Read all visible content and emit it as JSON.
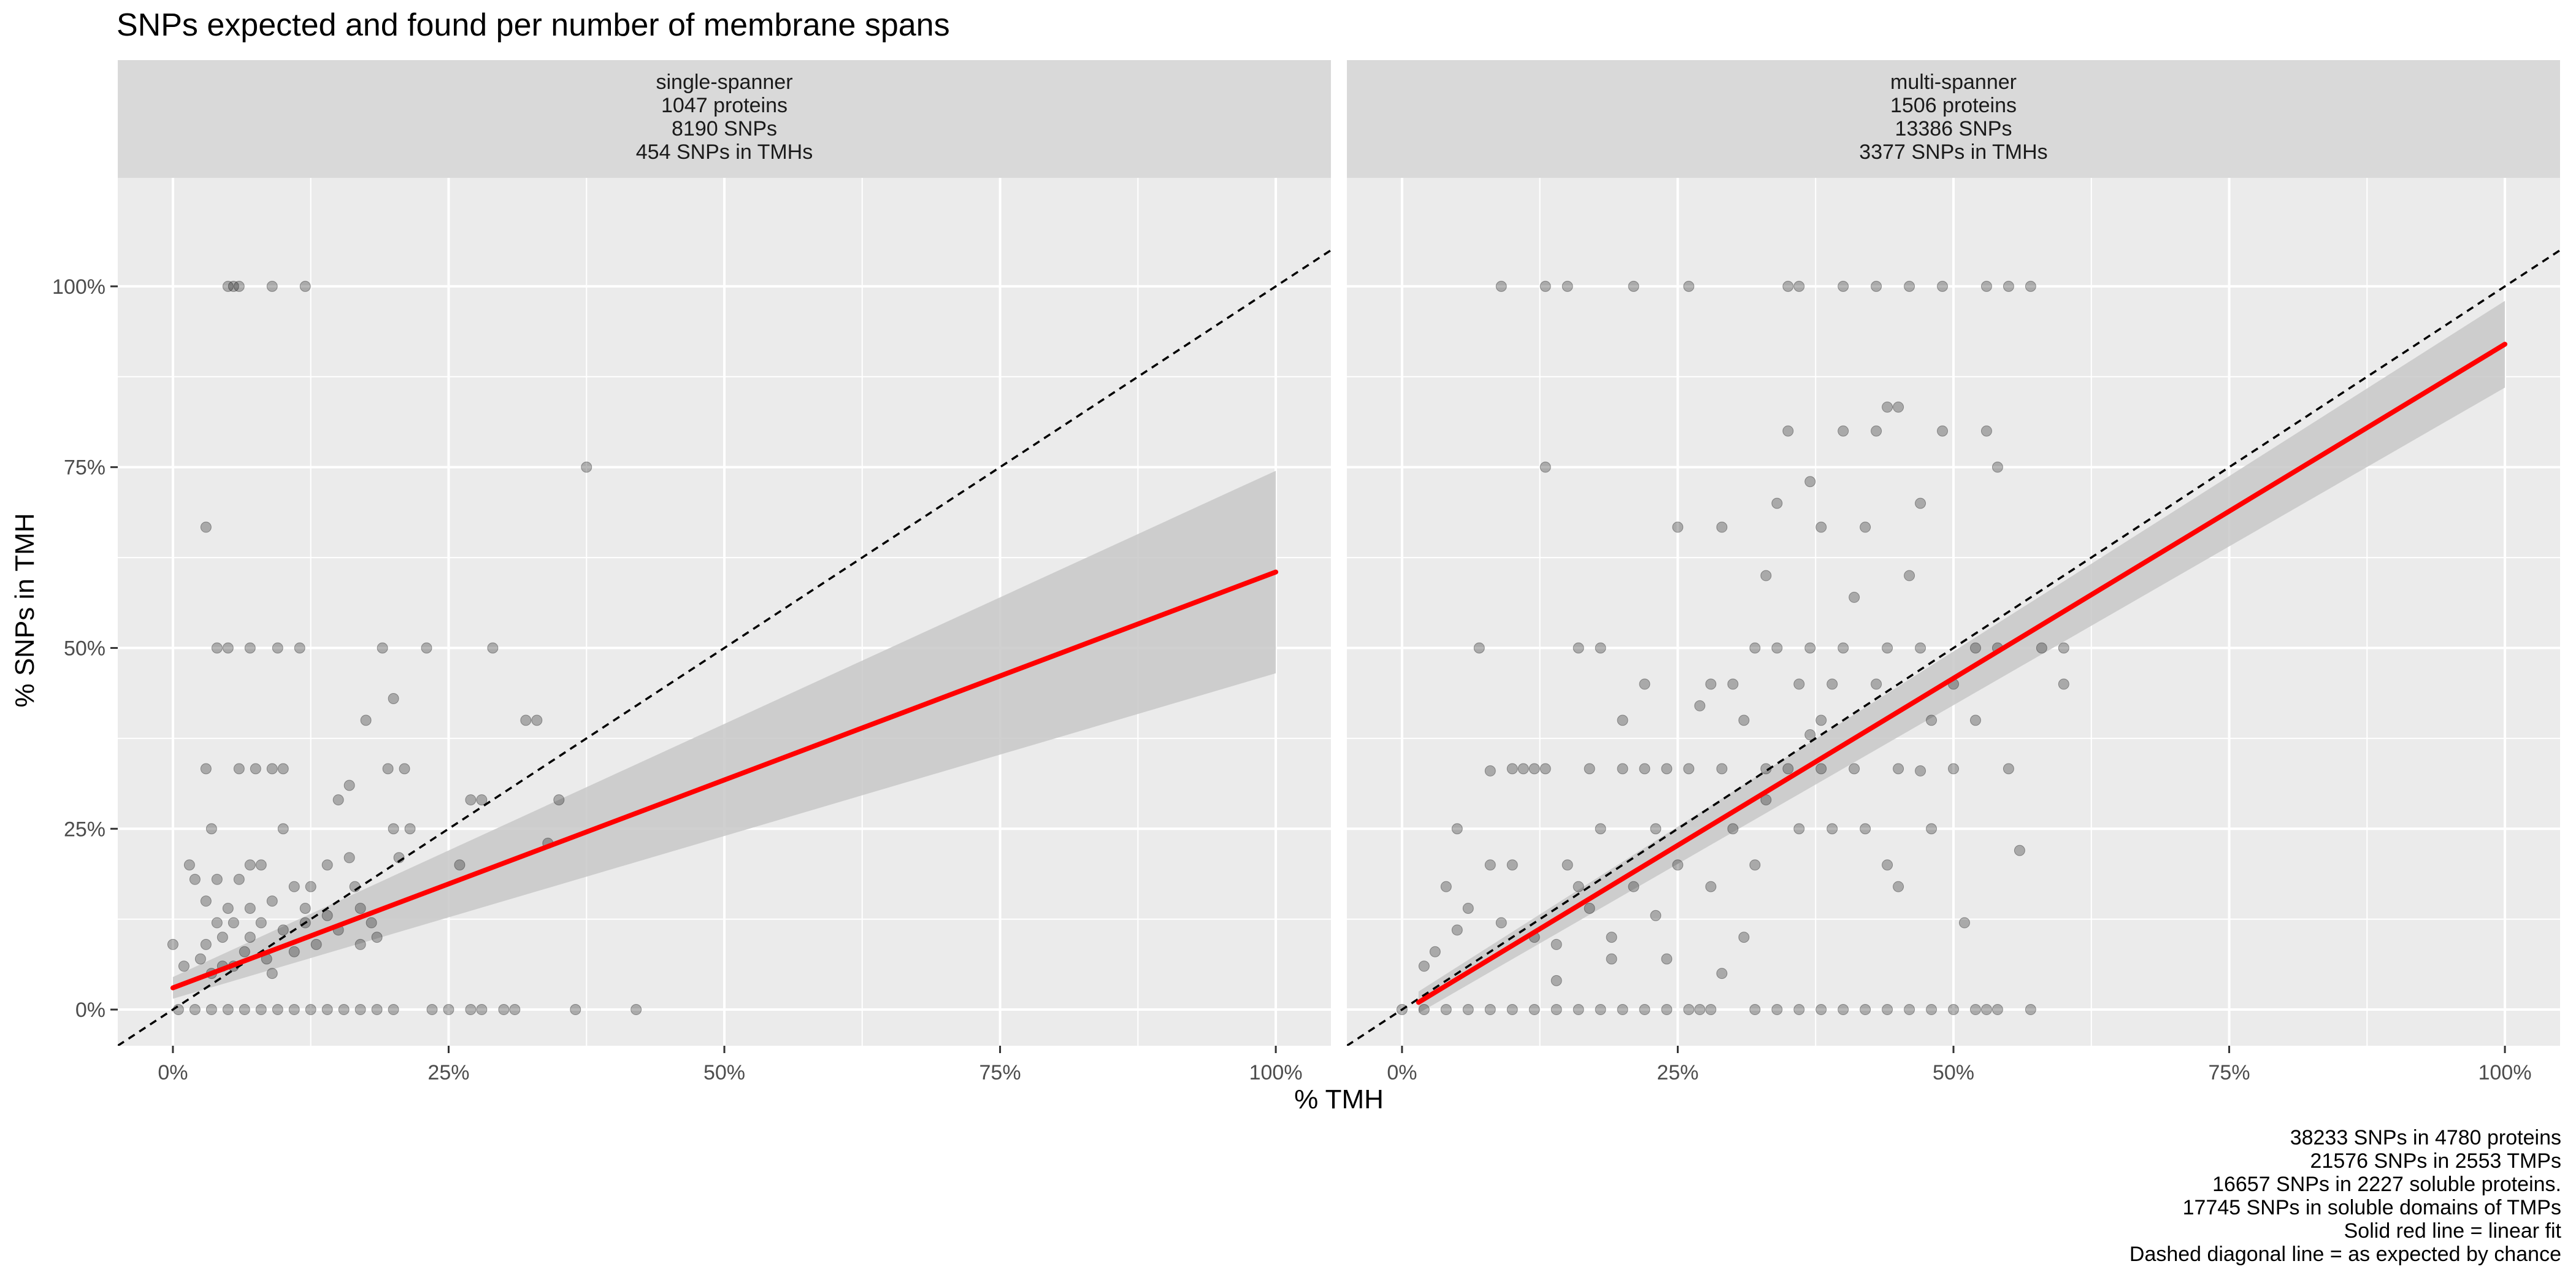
{
  "title": "SNPs expected and found per number of membrane spans",
  "xlabel": "% TMH",
  "ylabel": "% SNPs in TMH",
  "caption": [
    "38233 SNPs in 4780 proteins",
    "21576 SNPs in 2553 TMPs",
    "16657 SNPs in 2227 soluble proteins.",
    "17745 SNPs in soluble domains of TMPs",
    "Solid red line = linear fit",
    "Dashed diagonal line = as expected by chance"
  ],
  "colors": {
    "panel_bg": "#ebebeb",
    "strip_bg": "#d9d9d9",
    "grid": "#ffffff",
    "points": "#000000",
    "fit": "#ff0000",
    "ribbon": "#c8c8c8",
    "diagonal": "#000000"
  },
  "chart_data": {
    "type": "scatter",
    "xlim": [
      -0.05,
      1.05
    ],
    "ylim": [
      -0.05,
      1.15
    ],
    "x_ticks": [
      0,
      0.25,
      0.5,
      0.75,
      1.0
    ],
    "x_tick_labels": [
      "0%",
      "25%",
      "50%",
      "75%",
      "100%"
    ],
    "y_ticks": [
      0,
      0.25,
      0.5,
      0.75,
      1.0
    ],
    "y_tick_labels": [
      "0%",
      "25%",
      "50%",
      "75%",
      "100%"
    ],
    "grid": true,
    "panels": [
      {
        "strip": [
          "single-spanner",
          "1047 proteins",
          "8190 SNPs",
          "454 SNPs in TMHs"
        ],
        "fit": {
          "x": [
            0.0,
            1.0
          ],
          "y": [
            0.03,
            0.605
          ]
        },
        "ribbon": {
          "x": [
            0.0,
            1.0
          ],
          "lower": [
            0.015,
            0.465
          ],
          "upper": [
            0.045,
            0.745
          ]
        },
        "points": [
          [
            0.0,
            0.09
          ],
          [
            0.01,
            0.06
          ],
          [
            0.015,
            0.2
          ],
          [
            0.02,
            0.18
          ],
          [
            0.025,
            0.07
          ],
          [
            0.03,
            0.09
          ],
          [
            0.03,
            0.15
          ],
          [
            0.03,
            0.333
          ],
          [
            0.03,
            0.667
          ],
          [
            0.035,
            0.25
          ],
          [
            0.035,
            0.05
          ],
          [
            0.04,
            0.5
          ],
          [
            0.04,
            0.12
          ],
          [
            0.045,
            0.1
          ],
          [
            0.045,
            0.06
          ],
          [
            0.05,
            0.14
          ],
          [
            0.05,
            0.5
          ],
          [
            0.05,
            1.0
          ],
          [
            0.055,
            1.0
          ],
          [
            0.06,
            1.0
          ],
          [
            0.055,
            0.06
          ],
          [
            0.06,
            0.333
          ],
          [
            0.06,
            0.18
          ],
          [
            0.065,
            0.08
          ],
          [
            0.07,
            0.5
          ],
          [
            0.07,
            0.2
          ],
          [
            0.07,
            0.1
          ],
          [
            0.075,
            0.333
          ],
          [
            0.08,
            0.12
          ],
          [
            0.085,
            0.07
          ],
          [
            0.09,
            0.333
          ],
          [
            0.09,
            0.15
          ],
          [
            0.09,
            0.05
          ],
          [
            0.09,
            1.0
          ],
          [
            0.095,
            0.5
          ],
          [
            0.1,
            0.11
          ],
          [
            0.1,
            0.25
          ],
          [
            0.1,
            0.333
          ],
          [
            0.11,
            0.17
          ],
          [
            0.11,
            0.08
          ],
          [
            0.115,
            0.5
          ],
          [
            0.12,
            1.0
          ],
          [
            0.12,
            0.14
          ],
          [
            0.125,
            0.17
          ],
          [
            0.13,
            0.09
          ],
          [
            0.14,
            0.2
          ],
          [
            0.14,
            0.13
          ],
          [
            0.15,
            0.11
          ],
          [
            0.15,
            0.29
          ],
          [
            0.16,
            0.31
          ],
          [
            0.16,
            0.21
          ],
          [
            0.165,
            0.17
          ],
          [
            0.17,
            0.14
          ],
          [
            0.17,
            0.09
          ],
          [
            0.175,
            0.4
          ],
          [
            0.18,
            0.12
          ],
          [
            0.185,
            0.1
          ],
          [
            0.19,
            0.5
          ],
          [
            0.195,
            0.333
          ],
          [
            0.2,
            0.25
          ],
          [
            0.2,
            0.43
          ],
          [
            0.205,
            0.21
          ],
          [
            0.21,
            0.333
          ],
          [
            0.215,
            0.25
          ],
          [
            0.23,
            0.5
          ],
          [
            0.26,
            0.2
          ],
          [
            0.27,
            0.29
          ],
          [
            0.28,
            0.29
          ],
          [
            0.29,
            0.5
          ],
          [
            0.32,
            0.4
          ],
          [
            0.33,
            0.4
          ],
          [
            0.34,
            0.23
          ],
          [
            0.375,
            0.75
          ],
          [
            0.35,
            0.29
          ],
          [
            0.04,
            0.18
          ],
          [
            0.055,
            0.12
          ],
          [
            0.08,
            0.2
          ],
          [
            0.12,
            0.12
          ],
          [
            0.07,
            0.14
          ],
          [
            0.005,
            0.0
          ],
          [
            0.02,
            0.0
          ],
          [
            0.035,
            0.0
          ],
          [
            0.05,
            0.0
          ],
          [
            0.065,
            0.0
          ],
          [
            0.08,
            0.0
          ],
          [
            0.095,
            0.0
          ],
          [
            0.11,
            0.0
          ],
          [
            0.125,
            0.0
          ],
          [
            0.14,
            0.0
          ],
          [
            0.155,
            0.0
          ],
          [
            0.17,
            0.0
          ],
          [
            0.185,
            0.0
          ],
          [
            0.2,
            0.0
          ],
          [
            0.235,
            0.0
          ],
          [
            0.25,
            0.0
          ],
          [
            0.27,
            0.0
          ],
          [
            0.28,
            0.0
          ],
          [
            0.3,
            0.0
          ],
          [
            0.31,
            0.0
          ],
          [
            0.365,
            0.0
          ],
          [
            0.42,
            0.0
          ]
        ]
      },
      {
        "strip": [
          "multi-spanner",
          "1506 proteins",
          "13386 SNPs",
          "3377 SNPs in TMHs"
        ],
        "fit": {
          "x": [
            0.015,
            1.0
          ],
          "y": [
            0.01,
            0.92
          ]
        },
        "ribbon": {
          "x": [
            0.015,
            1.0
          ],
          "lower": [
            -0.005,
            0.86
          ],
          "upper": [
            0.025,
            0.98
          ]
        },
        "points": [
          [
            0.0,
            0.0
          ],
          [
            0.02,
            0.06
          ],
          [
            0.03,
            0.08
          ],
          [
            0.04,
            0.17
          ],
          [
            0.05,
            0.11
          ],
          [
            0.05,
            0.25
          ],
          [
            0.06,
            0.14
          ],
          [
            0.07,
            0.5
          ],
          [
            0.08,
            0.2
          ],
          [
            0.08,
            0.33
          ],
          [
            0.09,
            0.12
          ],
          [
            0.09,
            1.0
          ],
          [
            0.1,
            0.333
          ],
          [
            0.1,
            0.2
          ],
          [
            0.11,
            0.333
          ],
          [
            0.12,
            0.333
          ],
          [
            0.12,
            0.1
          ],
          [
            0.13,
            0.333
          ],
          [
            0.13,
            1.0
          ],
          [
            0.13,
            0.75
          ],
          [
            0.14,
            0.09
          ],
          [
            0.15,
            0.2
          ],
          [
            0.15,
            1.0
          ],
          [
            0.16,
            0.17
          ],
          [
            0.16,
            0.5
          ],
          [
            0.17,
            0.333
          ],
          [
            0.17,
            0.14
          ],
          [
            0.18,
            0.25
          ],
          [
            0.18,
            0.5
          ],
          [
            0.19,
            0.1
          ],
          [
            0.2,
            0.333
          ],
          [
            0.2,
            0.4
          ],
          [
            0.21,
            0.17
          ],
          [
            0.21,
            1.0
          ],
          [
            0.22,
            0.333
          ],
          [
            0.22,
            0.45
          ],
          [
            0.23,
            0.25
          ],
          [
            0.24,
            0.07
          ],
          [
            0.24,
            0.333
          ],
          [
            0.25,
            0.667
          ],
          [
            0.25,
            0.2
          ],
          [
            0.26,
            0.333
          ],
          [
            0.26,
            1.0
          ],
          [
            0.27,
            0.42
          ],
          [
            0.28,
            0.45
          ],
          [
            0.28,
            0.17
          ],
          [
            0.29,
            0.667
          ],
          [
            0.29,
            0.333
          ],
          [
            0.3,
            0.25
          ],
          [
            0.3,
            0.45
          ],
          [
            0.31,
            0.4
          ],
          [
            0.32,
            0.5
          ],
          [
            0.32,
            0.2
          ],
          [
            0.33,
            0.333
          ],
          [
            0.33,
            0.6
          ],
          [
            0.34,
            0.7
          ],
          [
            0.34,
            0.5
          ],
          [
            0.35,
            0.8
          ],
          [
            0.35,
            1.0
          ],
          [
            0.35,
            0.333
          ],
          [
            0.36,
            0.25
          ],
          [
            0.36,
            0.45
          ],
          [
            0.36,
            1.0
          ],
          [
            0.37,
            0.73
          ],
          [
            0.37,
            0.5
          ],
          [
            0.38,
            0.667
          ],
          [
            0.38,
            0.333
          ],
          [
            0.38,
            0.4
          ],
          [
            0.39,
            0.25
          ],
          [
            0.39,
            0.45
          ],
          [
            0.4,
            0.8
          ],
          [
            0.4,
            0.5
          ],
          [
            0.4,
            1.0
          ],
          [
            0.41,
            0.333
          ],
          [
            0.41,
            0.57
          ],
          [
            0.42,
            0.667
          ],
          [
            0.42,
            0.25
          ],
          [
            0.43,
            0.8
          ],
          [
            0.43,
            0.45
          ],
          [
            0.43,
            1.0
          ],
          [
            0.44,
            0.833
          ],
          [
            0.44,
            0.5
          ],
          [
            0.45,
            0.833
          ],
          [
            0.45,
            0.333
          ],
          [
            0.45,
            0.17
          ],
          [
            0.46,
            0.6
          ],
          [
            0.46,
            1.0
          ],
          [
            0.47,
            0.7
          ],
          [
            0.47,
            0.5
          ],
          [
            0.48,
            0.4
          ],
          [
            0.48,
            0.25
          ],
          [
            0.49,
            0.8
          ],
          [
            0.49,
            1.0
          ],
          [
            0.5,
            0.45
          ],
          [
            0.5,
            0.333
          ],
          [
            0.51,
            0.12
          ],
          [
            0.52,
            0.5
          ],
          [
            0.52,
            0.4
          ],
          [
            0.53,
            0.8
          ],
          [
            0.53,
            1.0
          ],
          [
            0.54,
            0.5
          ],
          [
            0.54,
            0.75
          ],
          [
            0.55,
            0.333
          ],
          [
            0.55,
            1.0
          ],
          [
            0.56,
            0.22
          ],
          [
            0.57,
            1.0
          ],
          [
            0.58,
            0.5
          ],
          [
            0.6,
            0.5
          ],
          [
            0.6,
            0.45
          ],
          [
            0.27,
            0.0
          ],
          [
            0.31,
            0.1
          ],
          [
            0.23,
            0.13
          ],
          [
            0.14,
            0.04
          ],
          [
            0.19,
            0.07
          ],
          [
            0.33,
            0.29
          ],
          [
            0.37,
            0.38
          ],
          [
            0.44,
            0.2
          ],
          [
            0.47,
            0.33
          ],
          [
            0.29,
            0.05
          ],
          [
            0.02,
            0.0
          ],
          [
            0.04,
            0.0
          ],
          [
            0.06,
            0.0
          ],
          [
            0.08,
            0.0
          ],
          [
            0.1,
            0.0
          ],
          [
            0.12,
            0.0
          ],
          [
            0.14,
            0.0
          ],
          [
            0.16,
            0.0
          ],
          [
            0.18,
            0.0
          ],
          [
            0.2,
            0.0
          ],
          [
            0.22,
            0.0
          ],
          [
            0.24,
            0.0
          ],
          [
            0.26,
            0.0
          ],
          [
            0.28,
            0.0
          ],
          [
            0.32,
            0.0
          ],
          [
            0.34,
            0.0
          ],
          [
            0.36,
            0.0
          ],
          [
            0.38,
            0.0
          ],
          [
            0.4,
            0.0
          ],
          [
            0.42,
            0.0
          ],
          [
            0.44,
            0.0
          ],
          [
            0.46,
            0.0
          ],
          [
            0.48,
            0.0
          ],
          [
            0.5,
            0.0
          ],
          [
            0.52,
            0.0
          ],
          [
            0.53,
            0.0
          ],
          [
            0.54,
            0.0
          ],
          [
            0.57,
            0.0
          ]
        ]
      }
    ]
  }
}
